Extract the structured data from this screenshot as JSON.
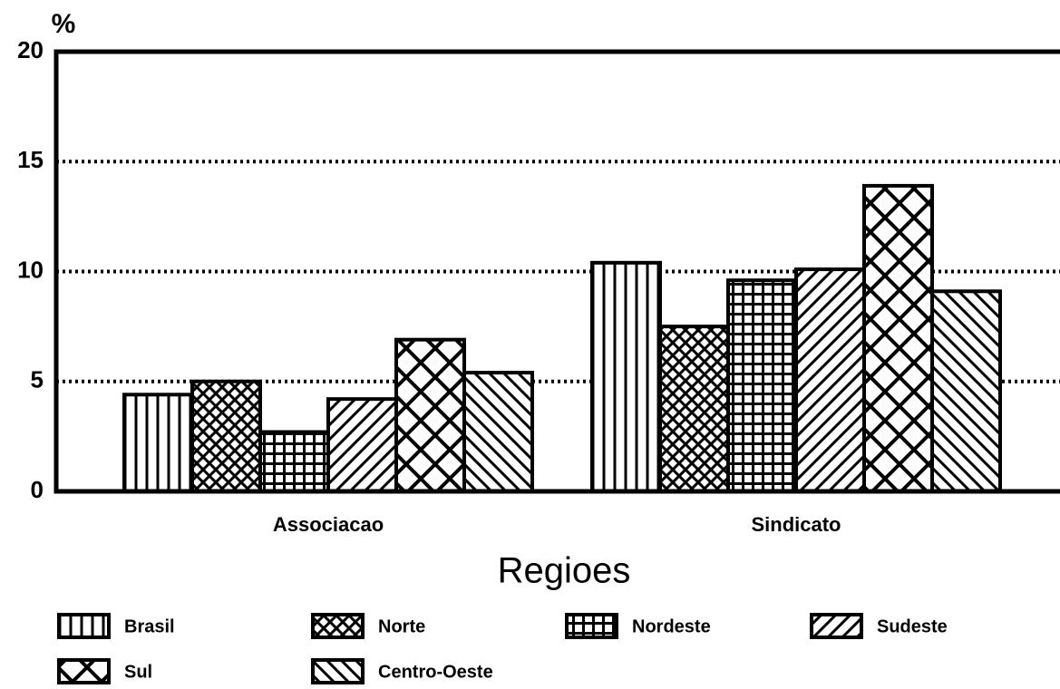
{
  "chart_data": {
    "type": "bar",
    "y_label": "%",
    "x_label": "Regioes",
    "categories": [
      "Associacao",
      "Sindicato"
    ],
    "series": [
      {
        "name": "Brasil",
        "color": "#000000",
        "pattern": "vertical",
        "values": [
          4.4,
          10.4
        ]
      },
      {
        "name": "Norte",
        "color": "#000000",
        "pattern": "fine-crosshatch",
        "values": [
          5.0,
          7.5
        ]
      },
      {
        "name": "Nordeste",
        "color": "#000000",
        "pattern": "grid",
        "values": [
          2.7,
          9.6
        ]
      },
      {
        "name": "Sudeste",
        "color": "#000000",
        "pattern": "diagonal-up",
        "values": [
          4.2,
          10.1
        ]
      },
      {
        "name": "Sul",
        "color": "#000000",
        "pattern": "wide-crosshatch",
        "values": [
          6.9,
          13.9
        ]
      },
      {
        "name": "Centro-Oeste",
        "color": "#000000",
        "pattern": "diagonal-down",
        "values": [
          5.4,
          9.1
        ]
      }
    ],
    "ylim": [
      0,
      20
    ],
    "yticks": [
      0,
      5,
      10,
      15,
      20
    ],
    "grid": true,
    "legend": "bottom"
  }
}
